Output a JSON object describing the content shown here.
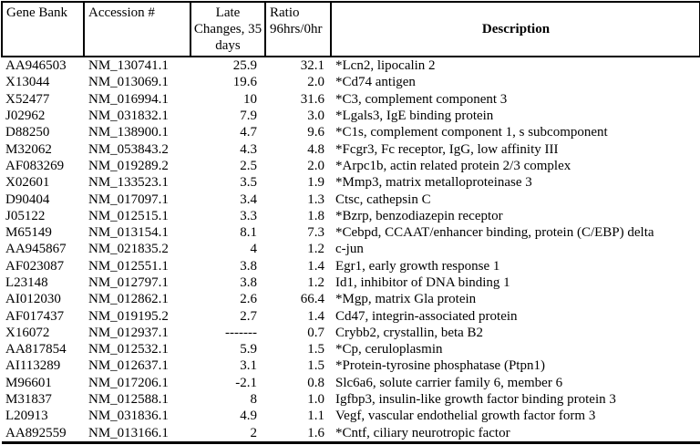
{
  "table": {
    "headers": {
      "gene_bank": "Gene Bank",
      "accession": "Accession #",
      "late_changes": "Late Changes, 35 days",
      "ratio": "Ratio 96hrs/0hr",
      "description": "Description"
    },
    "rows": [
      {
        "gene_bank": "AA946503",
        "accession": "NM_130741.1",
        "late_changes": "25.9",
        "ratio": "32.1",
        "description": "*Lcn2, lipocalin 2"
      },
      {
        "gene_bank": "X13044",
        "accession": "NM_013069.1",
        "late_changes": "19.6",
        "ratio": "2.0",
        "description": "*Cd74 antigen"
      },
      {
        "gene_bank": "X52477",
        "accession": "NM_016994.1",
        "late_changes": "10",
        "ratio": "31.6",
        "description": "*C3, complement component 3"
      },
      {
        "gene_bank": "J02962",
        "accession": "NM_031832.1",
        "late_changes": "7.9",
        "ratio": "3.0",
        "description": "*Lgals3, IgE binding protein"
      },
      {
        "gene_bank": "D88250",
        "accession": "NM_138900.1",
        "late_changes": "4.7",
        "ratio": "9.6",
        "description": "*C1s, complement component 1, s subcomponent"
      },
      {
        "gene_bank": "M32062",
        "accession": "NM_053843.2",
        "late_changes": "4.3",
        "ratio": "4.8",
        "description": "*Fcgr3, Fc receptor, IgG, low affinity III"
      },
      {
        "gene_bank": "AF083269",
        "accession": "NM_019289.2",
        "late_changes": "2.5",
        "ratio": "2.0",
        "description": "*Arpc1b, actin related protein 2/3 complex"
      },
      {
        "gene_bank": "X02601",
        "accession": "NM_133523.1",
        "late_changes": "3.5",
        "ratio": "1.9",
        "description": "*Mmp3, matrix metalloproteinase 3"
      },
      {
        "gene_bank": "D90404",
        "accession": "NM_017097.1",
        "late_changes": "3.4",
        "ratio": "1.3",
        "description": "Ctsc, cathepsin C"
      },
      {
        "gene_bank": "J05122",
        "accession": "NM_012515.1",
        "late_changes": "3.3",
        "ratio": "1.8",
        "description": "*Bzrp, benzodiazepin receptor"
      },
      {
        "gene_bank": "M65149",
        "accession": "NM_013154.1",
        "late_changes": "8.1",
        "ratio": "7.3",
        "description": "*Cebpd, CCAAT/enhancer binding, protein (C/EBP) delta"
      },
      {
        "gene_bank": "AA945867",
        "accession": "NM_021835.2",
        "late_changes": "4",
        "ratio": "1.2",
        "description": "c-jun"
      },
      {
        "gene_bank": "AF023087",
        "accession": "NM_012551.1",
        "late_changes": "3.8",
        "ratio": "1.4",
        "description": "Egr1, early growth response 1"
      },
      {
        "gene_bank": "L23148",
        "accession": "NM_012797.1",
        "late_changes": "3.8",
        "ratio": "1.2",
        "description": "Id1, inhibitor of DNA binding 1"
      },
      {
        "gene_bank": "AI012030",
        "accession": "NM_012862.1",
        "late_changes": "2.6",
        "ratio": "66.4",
        "description": "*Mgp, matrix Gla protein"
      },
      {
        "gene_bank": "AF017437",
        "accession": "NM_019195.2",
        "late_changes": "2.7",
        "ratio": "1.4",
        "description": "Cd47, integrin-associated protein"
      },
      {
        "gene_bank": "X16072",
        "accession": "NM_012937.1",
        "late_changes": "-------",
        "ratio": "0.7",
        "description": "Crybb2, crystallin, beta B2"
      },
      {
        "gene_bank": "AA817854",
        "accession": "NM_012532.1",
        "late_changes": "5.9",
        "ratio": "1.5",
        "description": "*Cp, ceruloplasmin"
      },
      {
        "gene_bank": "AI113289",
        "accession": "NM_012637.1",
        "late_changes": "3.1",
        "ratio": "1.5",
        "description": "*Protein-tyrosine phosphatase (Ptpn1)"
      },
      {
        "gene_bank": "M96601",
        "accession": "NM_017206.1",
        "late_changes": "-2.1",
        "ratio": "0.8",
        "description": "Slc6a6, solute carrier family 6, member 6"
      },
      {
        "gene_bank": "M31837",
        "accession": "NM_012588.1",
        "late_changes": "8",
        "ratio": "1.0",
        "description": "Igfbp3, insulin-like growth factor binding protein 3"
      },
      {
        "gene_bank": "L20913",
        "accession": "NM_031836.1",
        "late_changes": "4.9",
        "ratio": "1.1",
        "description": "Vegf, vascular endothelial growth factor form 3"
      },
      {
        "gene_bank": "AA892559",
        "accession": "NM_013166.1",
        "late_changes": "2",
        "ratio": "1.6",
        "description": "*Cntf, ciliary neurotropic factor"
      }
    ]
  }
}
